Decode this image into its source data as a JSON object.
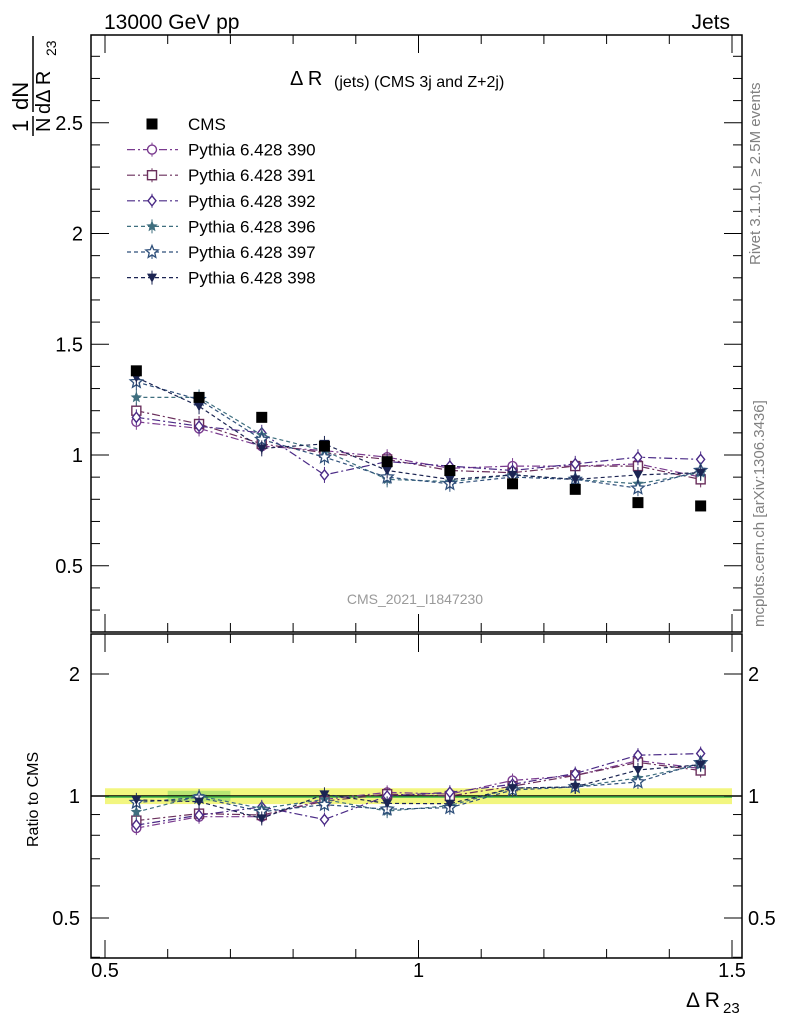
{
  "header": {
    "left": "13000 GeV pp",
    "right": "Jets"
  },
  "side": {
    "rivet": "Rivet 3.1.10, ≥ 2.5M events",
    "site": "mcplots.cern.ch [arXiv:1306.3436]"
  },
  "watermark": "CMS_2021_I1847230",
  "chart_data": {
    "type": "line",
    "title": "Δ R (jets) (CMS 3j and Z+2j)",
    "title_main": "Δ R",
    "title_sub": "(jets) (CMS 3j and Z+2j)",
    "xlabel": "Δ R",
    "xlabel_sub": "23",
    "ylabel": "1/N dN/dΔ R23",
    "ratio_ylabel": "Ratio to CMS",
    "xlim": [
      0.5,
      1.5
    ],
    "ylim": [
      0.2,
      2.9
    ],
    "ratio_ylim": [
      0.3,
      2.3
    ],
    "x": [
      0.55,
      0.65,
      0.75,
      0.85,
      0.95,
      1.05,
      1.15,
      1.25,
      1.35,
      1.45
    ],
    "x_ticks": [
      "0.5",
      "1",
      "1.5"
    ],
    "y_ticks": [
      "0.5",
      "1",
      "1.5",
      "2",
      "2.5"
    ],
    "ratio_ticks": [
      "0.5",
      "1",
      "2"
    ],
    "data": {
      "name": "CMS",
      "values": [
        1.38,
        1.26,
        1.17,
        1.04,
        0.97,
        0.93,
        0.87,
        0.845,
        0.785,
        0.77
      ],
      "color": "#000000"
    },
    "series": [
      {
        "name": "Pythia 6.428 390",
        "values": [
          1.15,
          1.12,
          1.04,
          1.02,
          0.99,
          0.94,
          0.95,
          0.95,
          0.96,
          0.9
        ],
        "color": "#7a3b8f",
        "marker": "circle-open",
        "dash": "8,3,2,3"
      },
      {
        "name": "Pythia 6.428 391",
        "values": [
          1.2,
          1.14,
          1.05,
          1.01,
          0.98,
          0.93,
          0.92,
          0.95,
          0.95,
          0.89
        ],
        "color": "#6a2f5c",
        "marker": "square-open",
        "dash": "8,3,2,3"
      },
      {
        "name": "Pythia 6.428 392",
        "values": [
          1.17,
          1.13,
          1.1,
          0.91,
          0.97,
          0.95,
          0.93,
          0.96,
          0.99,
          0.98
        ],
        "color": "#4a2a86",
        "marker": "diamond-open",
        "dash": "8,3,2,3"
      },
      {
        "name": "Pythia 6.428 396",
        "values": [
          1.26,
          1.26,
          1.09,
          1.02,
          0.89,
          0.88,
          0.91,
          0.89,
          0.87,
          0.92
        ],
        "color": "#3f6f7f",
        "marker": "star-filled",
        "dash": "4,3"
      },
      {
        "name": "Pythia 6.428 397",
        "values": [
          1.33,
          1.25,
          1.07,
          0.99,
          0.9,
          0.87,
          0.9,
          0.89,
          0.85,
          0.93
        ],
        "color": "#2e4f7a",
        "marker": "star-open",
        "dash": "4,3"
      },
      {
        "name": "Pythia 6.428 398",
        "values": [
          1.35,
          1.22,
          1.03,
          1.05,
          0.93,
          0.89,
          0.91,
          0.89,
          0.91,
          0.92
        ],
        "color": "#1b2452",
        "marker": "triangle-down-filled",
        "dash": "4,3"
      }
    ],
    "ratio_band_color": "#f0f56a",
    "ratio_band_inner_color": "#8fd86b",
    "legend_position": "top-left",
    "grid": false,
    "y_scale": "linear"
  }
}
